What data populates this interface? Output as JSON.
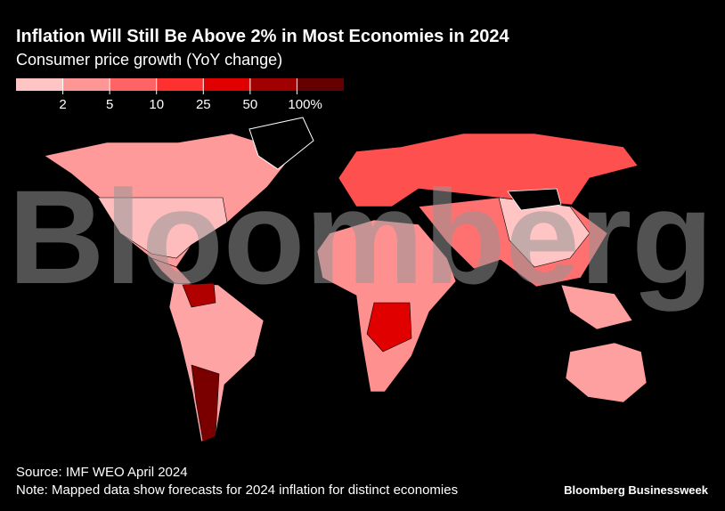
{
  "header": {
    "title": "Inflation Will Still Be Above 2% in Most Economies in 2024",
    "subtitle": "Consumer price growth (YoY change)"
  },
  "legend": {
    "ticks": [
      2,
      5,
      10,
      25,
      50,
      {
        "value": 100,
        "label": "100%"
      }
    ],
    "colors": [
      "#ffc4c4",
      "#ff9696",
      "#ff6464",
      "#ff3030",
      "#e00000",
      "#a00000",
      "#650000"
    ]
  },
  "watermark": "Bloomberg",
  "footer": {
    "source": "Source: IMF WEO April 2024",
    "note": "Note: Mapped data show forecasts for 2024 inflation for distinct economies",
    "brand": "Bloomberg Businessweek"
  }
}
